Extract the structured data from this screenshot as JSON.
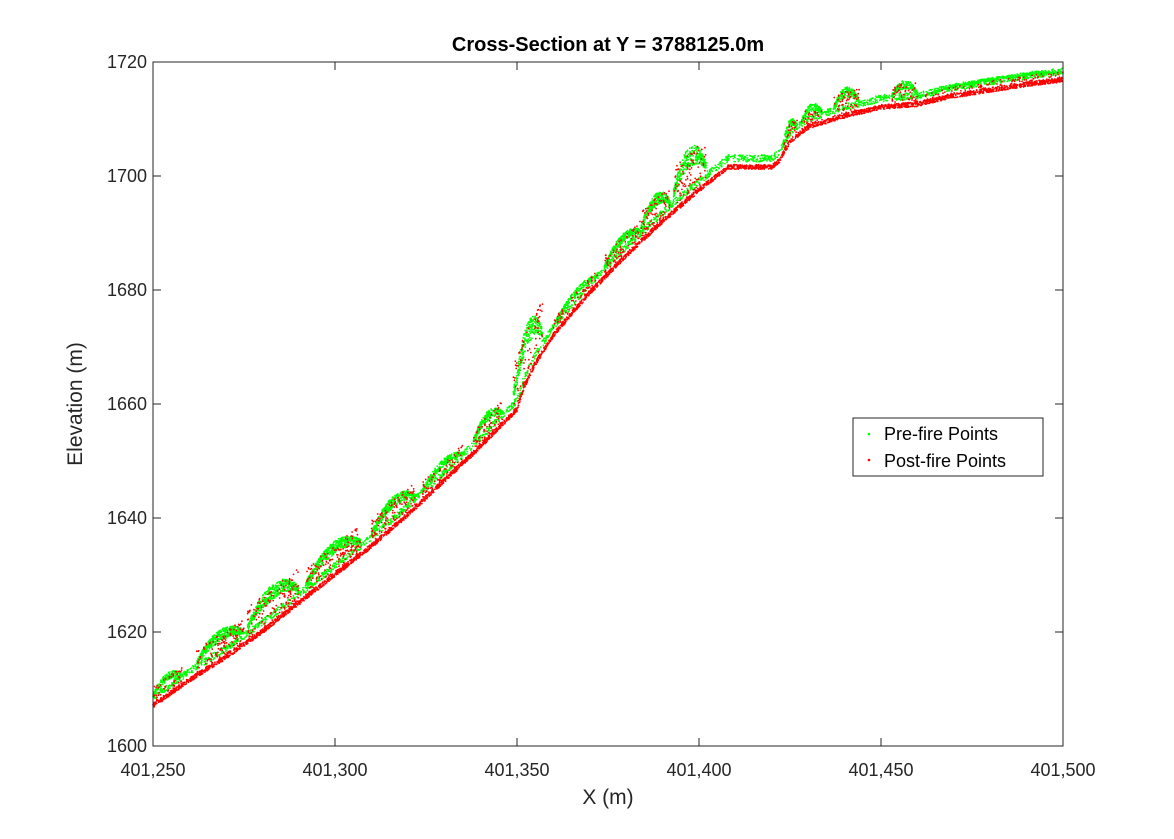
{
  "chart_data": {
    "type": "scatter",
    "title": "Cross-Section at Y = 3788125.0m",
    "xlabel": "X (m)",
    "ylabel": "Elevation (m)",
    "xlim": [
      401250,
      401500
    ],
    "ylim": [
      1600,
      1720
    ],
    "x_ticks": [
      401250,
      401300,
      401350,
      401400,
      401450,
      401500
    ],
    "x_tick_labels": [
      "401,250",
      "401,300",
      "401,350",
      "401,400",
      "401,450",
      "401,500"
    ],
    "y_ticks": [
      1600,
      1620,
      1640,
      1660,
      1680,
      1700,
      1720
    ],
    "y_tick_labels": [
      "1600",
      "1620",
      "1640",
      "1660",
      "1680",
      "1700",
      "1720"
    ],
    "grid": false,
    "legend_position": "right",
    "ground_profile": {
      "x": [
        401250,
        401260,
        401270,
        401280,
        401290,
        401300,
        401310,
        401320,
        401330,
        401340,
        401350,
        401352,
        401355,
        401360,
        401370,
        401380,
        401390,
        401400,
        401408,
        401410,
        401415,
        401420,
        401422,
        401425,
        401430,
        401440,
        401450,
        401460,
        401470,
        401480,
        401490,
        401500
      ],
      "y": [
        1607,
        1611.5,
        1615.5,
        1620,
        1625,
        1630,
        1635,
        1640.5,
        1646.5,
        1652.5,
        1659,
        1663,
        1667,
        1672,
        1679.5,
        1686,
        1692,
        1697.5,
        1701.5,
        1701.5,
        1701.5,
        1701.5,
        1702.5,
        1706,
        1708.5,
        1710.5,
        1712,
        1712.5,
        1714,
        1715,
        1716,
        1716.8
      ]
    },
    "vegetation_clusters": [
      {
        "x": [
          401250,
          401258
        ],
        "height": 3.0
      },
      {
        "x": [
          401262,
          401275
        ],
        "height": 4.5
      },
      {
        "x": [
          401276,
          401290
        ],
        "height": 6.0
      },
      {
        "x": [
          401292,
          401307
        ],
        "height": 5.0
      },
      {
        "x": [
          401310,
          401322
        ],
        "height": 4.5
      },
      {
        "x": [
          401324,
          401335
        ],
        "height": 3.0
      },
      {
        "x": [
          401338,
          401346
        ],
        "height": 4.0
      },
      {
        "x": [
          401349,
          401357
        ],
        "height": 9.0
      },
      {
        "x": [
          401360,
          401372
        ],
        "height": 2.5
      },
      {
        "x": [
          401374,
          401384
        ],
        "height": 3.5
      },
      {
        "x": [
          401384,
          401392
        ],
        "height": 5.0
      },
      {
        "x": [
          401393,
          401402
        ],
        "height": 8.0
      },
      {
        "x": [
          401423,
          401427
        ],
        "height": 3.0
      },
      {
        "x": [
          401428,
          401434
        ],
        "height": 3.0
      },
      {
        "x": [
          401437,
          401444
        ],
        "height": 4.0
      },
      {
        "x": [
          401453,
          401460
        ],
        "height": 3.5
      },
      {
        "x": [
          401462,
          401500
        ],
        "height": 1.2
      }
    ],
    "series": [
      {
        "name": "Pre-fire Points",
        "color": "#00ff00"
      },
      {
        "name": "Post-fire Points",
        "color": "#ff0000"
      }
    ]
  }
}
